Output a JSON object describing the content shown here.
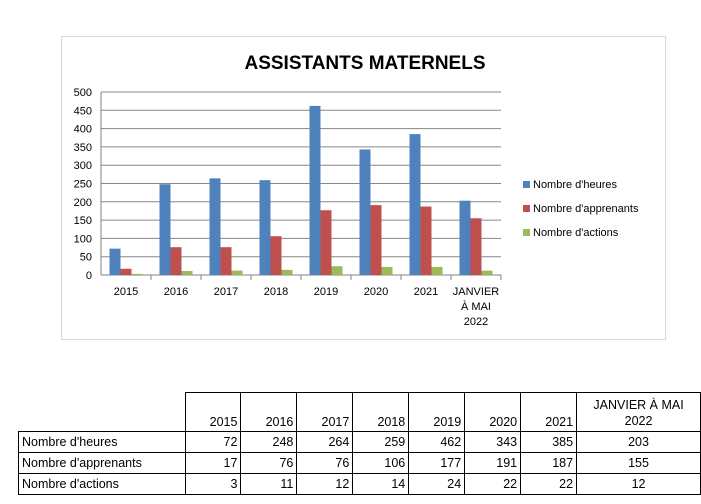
{
  "chart_data": {
    "type": "bar",
    "title": "ASSISTANTS MATERNELS",
    "categories": [
      "2015",
      "2016",
      "2017",
      "2018",
      "2019",
      "2020",
      "2021",
      "JANVIER À MAI 2022"
    ],
    "category_lines": [
      [
        "2015"
      ],
      [
        "2016"
      ],
      [
        "2017"
      ],
      [
        "2018"
      ],
      [
        "2019"
      ],
      [
        "2020"
      ],
      [
        "2021"
      ],
      [
        "JANVIER",
        "À MAI",
        "2022"
      ]
    ],
    "series": [
      {
        "name": "Nombre d'heures",
        "color": "#4f81bd",
        "values": [
          72,
          248,
          264,
          259,
          462,
          343,
          385,
          203
        ]
      },
      {
        "name": "Nombre d'apprenants",
        "color": "#c0504d",
        "values": [
          17,
          76,
          76,
          106,
          177,
          191,
          187,
          155
        ]
      },
      {
        "name": "Nombre d'actions",
        "color": "#9bbb59",
        "values": [
          3,
          11,
          12,
          14,
          24,
          22,
          22,
          12
        ]
      }
    ],
    "ylim": [
      0,
      500
    ],
    "yticks": [
      "0",
      "50",
      "100",
      "150",
      "200",
      "250",
      "300",
      "350",
      "400",
      "450",
      "500"
    ],
    "grid": true,
    "legend_position": "right",
    "xlabel": "",
    "ylabel": ""
  },
  "table": {
    "last_header_lines": [
      "JANVIER À MAI",
      "2022"
    ]
  }
}
